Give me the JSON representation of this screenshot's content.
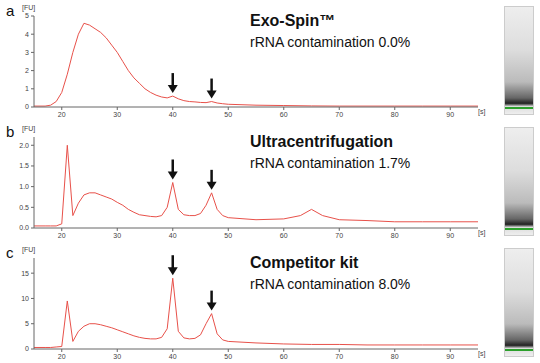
{
  "chart_data": [
    {
      "panel": "a",
      "type": "line",
      "title": "Exo-Spin™",
      "subtitle": "rRNA contamination 0.0%",
      "x_label": "[s]",
      "y_label": "[FU]",
      "color": "#e8514a",
      "x": [
        15,
        17,
        18,
        19,
        20,
        21,
        22,
        23,
        24,
        25,
        26,
        27,
        28,
        29,
        30,
        31,
        32,
        33,
        34,
        35,
        36,
        37,
        38,
        39,
        40,
        41,
        42,
        43,
        44,
        45,
        46,
        47,
        48,
        49,
        50,
        55,
        60,
        65,
        70,
        75,
        80,
        85,
        90,
        95
      ],
      "values": [
        0.05,
        0.05,
        0.1,
        0.3,
        0.8,
        1.8,
        3.0,
        4.0,
        4.6,
        4.5,
        4.3,
        4.1,
        3.8,
        3.4,
        3.0,
        2.5,
        2.0,
        1.6,
        1.3,
        1.0,
        0.8,
        0.65,
        0.55,
        0.5,
        0.6,
        0.45,
        0.35,
        0.3,
        0.28,
        0.25,
        0.24,
        0.3,
        0.22,
        0.18,
        0.15,
        0.1,
        0.08,
        0.06,
        0.05,
        0.05,
        0.05,
        0.05,
        0.05,
        0.05
      ],
      "xlim": [
        15,
        95
      ],
      "xticks": [
        20,
        30,
        40,
        50,
        60,
        70,
        80,
        90
      ],
      "ylim": [
        0,
        5
      ],
      "yticks": [
        0,
        1,
        2,
        3,
        4,
        5
      ],
      "arrow_x": [
        40,
        47
      ]
    },
    {
      "panel": "b",
      "type": "line",
      "title": "Ultracentrifugation",
      "subtitle": "rRNA contamination 1.7%",
      "x_label": "[s]",
      "y_label": "[FU]",
      "color": "#e8514a",
      "x": [
        15,
        17,
        18,
        19,
        20,
        21,
        22,
        23,
        24,
        25,
        26,
        27,
        28,
        29,
        30,
        31,
        32,
        33,
        34,
        35,
        36,
        37,
        38,
        39,
        40,
        41,
        42,
        43,
        44,
        45,
        46,
        47,
        48,
        49,
        50,
        55,
        60,
        63,
        65,
        67,
        70,
        75,
        80,
        85,
        90,
        95
      ],
      "values": [
        0.05,
        0.05,
        0.05,
        0.05,
        0.1,
        2.0,
        0.3,
        0.6,
        0.8,
        0.85,
        0.85,
        0.8,
        0.75,
        0.7,
        0.62,
        0.55,
        0.45,
        0.38,
        0.32,
        0.3,
        0.28,
        0.27,
        0.3,
        0.5,
        1.1,
        0.45,
        0.32,
        0.3,
        0.3,
        0.35,
        0.55,
        0.85,
        0.45,
        0.3,
        0.25,
        0.2,
        0.22,
        0.3,
        0.45,
        0.3,
        0.2,
        0.18,
        0.15,
        0.15,
        0.15,
        0.15
      ],
      "xlim": [
        15,
        95
      ],
      "xticks": [
        20,
        30,
        40,
        50,
        60,
        70,
        80,
        90
      ],
      "ylim": [
        0,
        2.2
      ],
      "yticks": [
        {
          "value": 0,
          "label": "0.0"
        },
        0.5,
        {
          "value": 1,
          "label": "1.0"
        },
        1.5,
        {
          "value": 2,
          "label": "2.0"
        }
      ],
      "arrow_x": [
        40,
        47
      ]
    },
    {
      "panel": "c",
      "type": "line",
      "title": "Competitor kit",
      "subtitle": "rRNA contamination 8.0%",
      "x_label": "[s]",
      "y_label": "[FU]",
      "color": "#e8514a",
      "x": [
        15,
        17,
        18,
        19,
        20,
        21,
        22,
        23,
        24,
        25,
        26,
        27,
        28,
        29,
        30,
        31,
        32,
        33,
        34,
        35,
        36,
        37,
        38,
        39,
        40,
        41,
        42,
        43,
        44,
        45,
        46,
        47,
        48,
        49,
        50,
        55,
        60,
        65,
        70,
        75,
        80,
        85,
        90,
        95
      ],
      "values": [
        0.3,
        0.3,
        0.3,
        0.4,
        0.5,
        9.5,
        1.5,
        3.5,
        4.5,
        5.0,
        5.0,
        4.8,
        4.5,
        4.2,
        3.8,
        3.4,
        3.0,
        2.6,
        2.3,
        2.1,
        2.0,
        2.0,
        2.3,
        4.0,
        14.0,
        3.5,
        2.2,
        2.0,
        2.1,
        2.8,
        5.0,
        7.0,
        3.0,
        1.8,
        1.5,
        1.2,
        1.0,
        0.9,
        0.9,
        0.8,
        0.8,
        0.8,
        0.8,
        0.8
      ],
      "xlim": [
        15,
        95
      ],
      "xticks": [
        20,
        30,
        40,
        50,
        60,
        70,
        80,
        90
      ],
      "ylim": [
        0,
        18
      ],
      "yticks": [
        0,
        5,
        10,
        15
      ],
      "arrow_x": [
        40,
        47
      ]
    }
  ]
}
